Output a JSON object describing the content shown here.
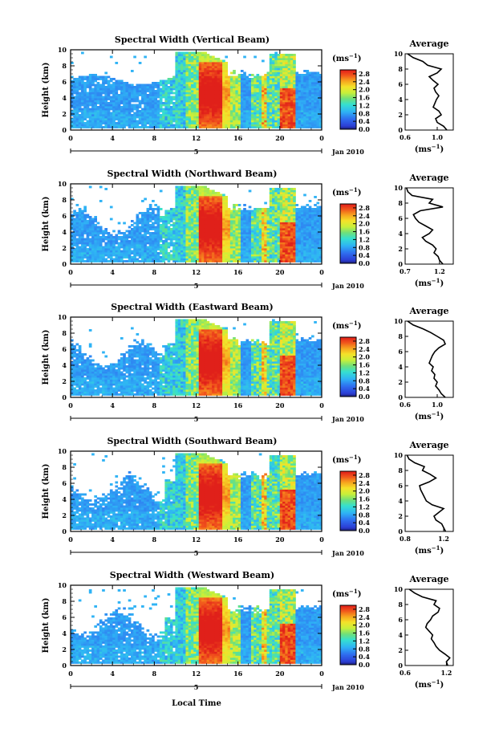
{
  "figure": {
    "xlabel": "Local Time",
    "date_label": "Jan 2010",
    "day_label": "5",
    "ylabel": "Height (km)",
    "cb_unit_base": "(ms",
    "cb_unit_exp": "−1",
    "cb_unit_close": ")",
    "avg_title": "Average",
    "avg_unit_base": "(ms",
    "avg_unit_exp": "−1",
    "avg_unit_close": ")"
  },
  "chart_data": [
    {
      "type": "heatmap",
      "title": "Spectral Width (Vertical Beam)",
      "x_ticks": [
        "0",
        "4",
        "8",
        "12",
        "16",
        "20",
        "0"
      ],
      "y_ticks": [
        "0",
        "2",
        "4",
        "6",
        "8",
        "10"
      ],
      "xlim": [
        0,
        24
      ],
      "ylim": [
        0,
        10
      ],
      "colorbar_ticks": [
        "0.0",
        "0.4",
        "0.8",
        "1.2",
        "1.6",
        "2.0",
        "2.4",
        "2.8"
      ],
      "colorbar_range": [
        0.0,
        3.0
      ],
      "avg_profile": {
        "xlim": [
          0.6,
          1.2
        ],
        "x_ticks": [
          "0.6",
          "1.0"
        ],
        "y_ticks": [
          "0",
          "2",
          "4",
          "6",
          "8",
          "10"
        ],
        "height": [
          0,
          0.5,
          1,
          1.5,
          2,
          2.5,
          3,
          3.5,
          4,
          4.5,
          5,
          5.5,
          6,
          6.5,
          7,
          7.5,
          8,
          8.5,
          9,
          9.5,
          10
        ],
        "width": [
          1.12,
          1.08,
          1.0,
          0.98,
          1.05,
          1.02,
          0.95,
          0.97,
          0.99,
          1.02,
          0.98,
          0.96,
          1.01,
          0.95,
          0.9,
          1.0,
          1.05,
          0.88,
          0.82,
          0.7,
          0.63
        ]
      }
    },
    {
      "type": "heatmap",
      "title": "Spectral Width (Northward Beam)",
      "x_ticks": [
        "0",
        "4",
        "8",
        "12",
        "16",
        "20",
        "0"
      ],
      "y_ticks": [
        "0",
        "2",
        "4",
        "6",
        "8",
        "10"
      ],
      "xlim": [
        0,
        24
      ],
      "ylim": [
        0,
        10
      ],
      "colorbar_ticks": [
        "0.0",
        "0.4",
        "0.8",
        "1.2",
        "1.6",
        "2.0",
        "2.4",
        "2.8"
      ],
      "colorbar_range": [
        0.0,
        3.0
      ],
      "avg_profile": {
        "xlim": [
          0.7,
          1.4
        ],
        "x_ticks": [
          "0.7",
          "1.2"
        ],
        "y_ticks": [
          "0",
          "2",
          "4",
          "6",
          "8",
          "10"
        ],
        "height": [
          0,
          0.5,
          1,
          1.5,
          2,
          2.5,
          3,
          3.5,
          4,
          4.5,
          5,
          5.5,
          6,
          6.5,
          7,
          7.5,
          8,
          8.5,
          9,
          9.5,
          10
        ],
        "width": [
          1.25,
          1.2,
          1.18,
          1.12,
          1.15,
          1.1,
          1.0,
          0.95,
          1.05,
          1.1,
          1.0,
          0.9,
          0.85,
          0.82,
          0.92,
          1.25,
          1.05,
          1.1,
          0.8,
          0.74,
          0.72
        ]
      }
    },
    {
      "type": "heatmap",
      "title": "Spectral Width (Eastward Beam)",
      "x_ticks": [
        "0",
        "4",
        "8",
        "12",
        "16",
        "20",
        "0"
      ],
      "y_ticks": [
        "0",
        "2",
        "4",
        "6",
        "8",
        "10"
      ],
      "xlim": [
        0,
        24
      ],
      "ylim": [
        0,
        10
      ],
      "colorbar_ticks": [
        "0.0",
        "0.4",
        "0.8",
        "1.2",
        "1.6",
        "2.0",
        "2.4",
        "2.8"
      ],
      "colorbar_range": [
        0.0,
        3.0
      ],
      "avg_profile": {
        "xlim": [
          0.6,
          1.2
        ],
        "x_ticks": [
          "0.6",
          "1.0"
        ],
        "y_ticks": [
          "0",
          "2",
          "4",
          "6",
          "8",
          "10"
        ],
        "height": [
          0,
          0.5,
          1,
          1.5,
          2,
          2.5,
          3,
          3.5,
          4,
          4.5,
          5,
          5.5,
          6,
          6.5,
          7,
          7.5,
          8,
          8.5,
          9,
          9.5,
          10
        ],
        "width": [
          1.1,
          1.05,
          1.02,
          0.98,
          1.0,
          0.96,
          0.97,
          0.93,
          0.95,
          0.9,
          0.92,
          0.94,
          0.97,
          1.02,
          1.1,
          1.08,
          1.0,
          0.92,
          0.82,
          0.7,
          0.63
        ]
      }
    },
    {
      "type": "heatmap",
      "title": "Spectral Width (Southward Beam)",
      "x_ticks": [
        "0",
        "4",
        "8",
        "12",
        "16",
        "20",
        "0"
      ],
      "y_ticks": [
        "0",
        "2",
        "4",
        "6",
        "8",
        "10"
      ],
      "xlim": [
        0,
        24
      ],
      "ylim": [
        0,
        10
      ],
      "colorbar_ticks": [
        "0.0",
        "0.4",
        "0.8",
        "1.2",
        "1.6",
        "2.0",
        "2.4",
        "2.8"
      ],
      "colorbar_range": [
        0.0,
        3.0
      ],
      "avg_profile": {
        "xlim": [
          0.8,
          1.3
        ],
        "x_ticks": [
          "0.8",
          "1.2"
        ],
        "y_ticks": [
          "0",
          "2",
          "4",
          "6",
          "8",
          "10"
        ],
        "height": [
          0,
          0.5,
          1,
          1.5,
          2,
          2.5,
          3,
          3.5,
          4,
          4.5,
          5,
          5.5,
          6,
          6.5,
          7,
          7.5,
          8,
          8.5,
          9,
          9.5,
          10
        ],
        "width": [
          1.22,
          1.2,
          1.18,
          1.12,
          1.1,
          1.15,
          1.2,
          1.08,
          1.02,
          1.0,
          0.98,
          0.96,
          0.95,
          1.05,
          1.12,
          1.06,
          0.98,
          1.0,
          0.9,
          0.84,
          0.82
        ]
      }
    },
    {
      "type": "heatmap",
      "title": "Spectral Width (Westward Beam)",
      "x_ticks": [
        "0",
        "4",
        "8",
        "12",
        "16",
        "20",
        "0"
      ],
      "y_ticks": [
        "0",
        "2",
        "4",
        "6",
        "8",
        "10"
      ],
      "xlim": [
        0,
        24
      ],
      "ylim": [
        0,
        10
      ],
      "colorbar_ticks": [
        "0.0",
        "0.4",
        "0.8",
        "1.2",
        "1.6",
        "2.0",
        "2.4",
        "2.8"
      ],
      "colorbar_range": [
        0.0,
        3.0
      ],
      "avg_profile": {
        "xlim": [
          0.6,
          1.3
        ],
        "x_ticks": [
          "0.6",
          "1.2"
        ],
        "y_ticks": [
          "0",
          "2",
          "4",
          "6",
          "8",
          "10"
        ],
        "height": [
          0,
          0.5,
          1,
          1.5,
          2,
          2.5,
          3,
          3.5,
          4,
          4.5,
          5,
          5.5,
          6,
          6.5,
          7,
          7.5,
          8,
          8.5,
          9,
          9.5,
          10
        ],
        "width": [
          1.22,
          1.2,
          1.25,
          1.18,
          1.1,
          1.05,
          1.02,
          0.98,
          1.0,
          0.95,
          0.9,
          0.92,
          0.97,
          1.0,
          1.08,
          1.1,
          1.02,
          1.05,
          0.85,
          0.74,
          0.66
        ]
      }
    }
  ]
}
